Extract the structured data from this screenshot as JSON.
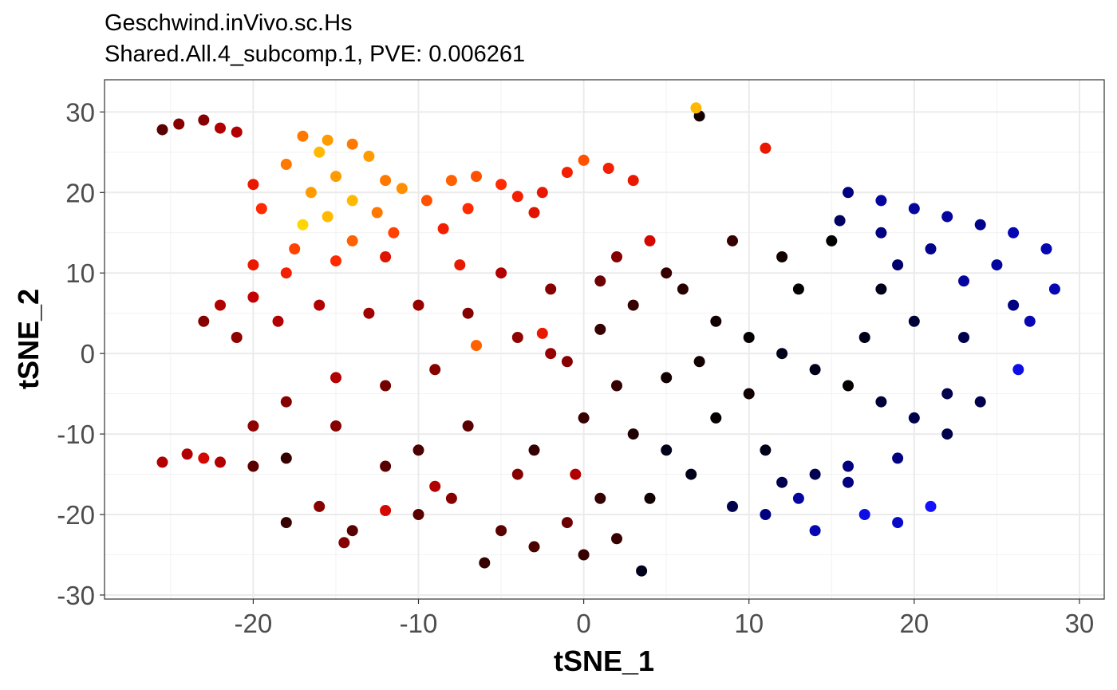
{
  "chart_data": {
    "type": "scatter",
    "title": "Geschwind.inVivo.sc.Hs",
    "subtitle": "Shared.All.4_subcomp.1, PVE: 0.006261",
    "xlabel": "tSNE_1",
    "ylabel": "tSNE_2",
    "xlim": [
      -29,
      31.5
    ],
    "ylim": [
      -30.5,
      34
    ],
    "x_ticks": [
      {
        "value": -20,
        "label": "-20"
      },
      {
        "value": -10,
        "label": "-10"
      },
      {
        "value": 0,
        "label": "0"
      },
      {
        "value": 10,
        "label": "10"
      },
      {
        "value": 20,
        "label": "20"
      },
      {
        "value": 30,
        "label": "30"
      }
    ],
    "y_ticks": [
      {
        "value": -30,
        "label": "-30"
      },
      {
        "value": -20,
        "label": "-20"
      },
      {
        "value": -10,
        "label": "-10"
      },
      {
        "value": 0,
        "label": "0"
      },
      {
        "value": 10,
        "label": "10"
      },
      {
        "value": 20,
        "label": "20"
      },
      {
        "value": 30,
        "label": "30"
      }
    ],
    "grid": true,
    "legend": "none",
    "color_scale": [
      "#7b2cf0",
      "#1010ff",
      "#000080",
      "#000000",
      "#5a0000",
      "#c80000",
      "#ff2a00",
      "#ff8c00",
      "#ffd700"
    ],
    "point_size": 7,
    "points": [
      [
        -24.5,
        28.5,
        0.55
      ],
      [
        -23,
        29,
        0.55
      ],
      [
        -22,
        28,
        0.6
      ],
      [
        -21,
        27.5,
        0.6
      ],
      [
        -25.5,
        27.8,
        0.5
      ],
      [
        -17,
        27,
        0.85
      ],
      [
        -15.5,
        26.5,
        0.9
      ],
      [
        -14,
        26,
        0.85
      ],
      [
        -16,
        25,
        0.95
      ],
      [
        -13,
        24.5,
        0.9
      ],
      [
        -18,
        23.5,
        0.85
      ],
      [
        -15,
        22,
        0.9
      ],
      [
        -12,
        21.5,
        0.85
      ],
      [
        -16.5,
        20,
        0.9
      ],
      [
        -14,
        19,
        0.95
      ],
      [
        -17,
        16,
        1.0
      ],
      [
        -15.5,
        17,
        0.95
      ],
      [
        -12.5,
        17.5,
        0.85
      ],
      [
        -19.5,
        18,
        0.75
      ],
      [
        -20,
        21,
        0.7
      ],
      [
        -11,
        20.5,
        0.88
      ],
      [
        -9.5,
        19,
        0.8
      ],
      [
        -8,
        21.5,
        0.82
      ],
      [
        -6.5,
        22,
        0.8
      ],
      [
        -5,
        21,
        0.75
      ],
      [
        -7,
        18,
        0.75
      ],
      [
        -4,
        19.5,
        0.72
      ],
      [
        -2.5,
        20,
        0.7
      ],
      [
        -1,
        22.5,
        0.72
      ],
      [
        0,
        24,
        0.8
      ],
      [
        1.5,
        23,
        0.72
      ],
      [
        3,
        21.5,
        0.7
      ],
      [
        -3,
        17.5,
        0.68
      ],
      [
        -8.5,
        15.5,
        0.72
      ],
      [
        -11.5,
        15,
        0.78
      ],
      [
        -14,
        14,
        0.82
      ],
      [
        -17.5,
        13,
        0.78
      ],
      [
        -20,
        11,
        0.7
      ],
      [
        -18,
        10,
        0.72
      ],
      [
        -15,
        11.5,
        0.75
      ],
      [
        -12,
        12,
        0.68
      ],
      [
        -22,
        6,
        0.6
      ],
      [
        -20,
        7,
        0.62
      ],
      [
        -23,
        4,
        0.55
      ],
      [
        -21,
        2,
        0.56
      ],
      [
        -18.5,
        4,
        0.6
      ],
      [
        -16,
        6,
        0.6
      ],
      [
        -13,
        5,
        0.58
      ],
      [
        -10,
        6,
        0.57
      ],
      [
        -7,
        5,
        0.55
      ],
      [
        -4,
        2,
        0.56
      ],
      [
        -2,
        0,
        0.57
      ],
      [
        -6.5,
        1,
        0.82
      ],
      [
        -2.5,
        2.5,
        0.7
      ],
      [
        -1,
        -1,
        0.55
      ],
      [
        -9,
        -2,
        0.55
      ],
      [
        -12,
        -4,
        0.53
      ],
      [
        -15,
        -3,
        0.6
      ],
      [
        -18,
        -6,
        0.55
      ],
      [
        -20,
        -9,
        0.56
      ],
      [
        -24,
        -12.5,
        0.6
      ],
      [
        -25.5,
        -13.5,
        0.6
      ],
      [
        -23,
        -13,
        0.65
      ],
      [
        -22,
        -13.5,
        0.6
      ],
      [
        -20,
        -14,
        0.5
      ],
      [
        -18,
        -21,
        0.45
      ],
      [
        -16,
        -19,
        0.55
      ],
      [
        -14,
        -22,
        0.5
      ],
      [
        -12,
        -19.5,
        0.65
      ],
      [
        -10,
        -20,
        0.5
      ],
      [
        -8,
        -18,
        0.55
      ],
      [
        -5,
        -22,
        0.5
      ],
      [
        -3,
        -24,
        0.48
      ],
      [
        -1,
        -21,
        0.52
      ],
      [
        0,
        -25,
        0.45
      ],
      [
        2,
        -23,
        0.45
      ],
      [
        3.5,
        -27,
        0.35
      ],
      [
        -6,
        -26,
        0.45
      ],
      [
        -9,
        -16.5,
        0.6
      ],
      [
        -14.5,
        -23.5,
        0.55
      ],
      [
        1,
        3,
        0.45
      ],
      [
        3,
        6,
        0.45
      ],
      [
        5,
        10,
        0.45
      ],
      [
        2,
        12,
        0.55
      ],
      [
        6,
        8,
        0.43
      ],
      [
        8,
        4,
        0.4
      ],
      [
        10,
        2,
        0.38
      ],
      [
        12,
        0,
        0.35
      ],
      [
        14,
        -2,
        0.35
      ],
      [
        16,
        -4,
        0.38
      ],
      [
        18,
        -6,
        0.32
      ],
      [
        20,
        -8,
        0.3
      ],
      [
        22,
        -5,
        0.3
      ],
      [
        5,
        -3,
        0.4
      ],
      [
        8,
        -8,
        0.38
      ],
      [
        11,
        -12,
        0.35
      ],
      [
        14,
        -15,
        0.3
      ],
      [
        3,
        -10,
        0.42
      ],
      [
        0,
        -8,
        0.45
      ],
      [
        -3,
        -12,
        0.45
      ],
      [
        9,
        14,
        0.45
      ],
      [
        12,
        12,
        0.4
      ],
      [
        15,
        14,
        0.38
      ],
      [
        18,
        8,
        0.35
      ],
      [
        20,
        4,
        0.32
      ],
      [
        23,
        2,
        0.3
      ],
      [
        17,
        2,
        0.35
      ],
      [
        13,
        8,
        0.38
      ],
      [
        16,
        20,
        0.25
      ],
      [
        18,
        19,
        0.22
      ],
      [
        20,
        18,
        0.22
      ],
      [
        22,
        17,
        0.22
      ],
      [
        24,
        16,
        0.24
      ],
      [
        26,
        15,
        0.2
      ],
      [
        28,
        13,
        0.2
      ],
      [
        28.5,
        8,
        0.2
      ],
      [
        25,
        11,
        0.22
      ],
      [
        21,
        13,
        0.24
      ],
      [
        18,
        15,
        0.25
      ],
      [
        15.5,
        16.5,
        0.28
      ],
      [
        19,
        11,
        0.27
      ],
      [
        23,
        9,
        0.22
      ],
      [
        26,
        6,
        0.25
      ],
      [
        27,
        4,
        0.2
      ],
      [
        26.3,
        -2,
        0.15
      ],
      [
        24,
        -6,
        0.3
      ],
      [
        22,
        -10,
        0.3
      ],
      [
        19,
        -13,
        0.25
      ],
      [
        16,
        -16,
        0.25
      ],
      [
        13,
        -18,
        0.22
      ],
      [
        11,
        -20,
        0.25
      ],
      [
        14,
        -22,
        0.2
      ],
      [
        17,
        -20,
        0.15
      ],
      [
        19,
        -21,
        0.18
      ],
      [
        21,
        -19,
        0.12
      ],
      [
        16,
        -14,
        0.25
      ],
      [
        12,
        -16,
        0.3
      ],
      [
        9,
        -19,
        0.3
      ],
      [
        6.5,
        -15,
        0.35
      ],
      [
        4,
        -18,
        0.4
      ],
      [
        6.8,
        30.5,
        0.95
      ],
      [
        7,
        29.5,
        0.4
      ],
      [
        11,
        25.5,
        0.7
      ],
      [
        -12,
        -14,
        0.5
      ],
      [
        -4,
        -15,
        0.55
      ],
      [
        -0.5,
        -15,
        0.6
      ],
      [
        1,
        -18,
        0.45
      ],
      [
        5,
        -12,
        0.35
      ],
      [
        -7,
        -9,
        0.5
      ],
      [
        -15,
        -9,
        0.55
      ],
      [
        -5,
        10,
        0.6
      ],
      [
        -2,
        8,
        0.55
      ],
      [
        1,
        9,
        0.52
      ],
      [
        4,
        14,
        0.65
      ],
      [
        -7.5,
        11,
        0.7
      ],
      [
        10,
        -5,
        0.4
      ],
      [
        7,
        -1,
        0.4
      ],
      [
        2,
        -4,
        0.45
      ],
      [
        -10,
        -12,
        0.48
      ],
      [
        -18,
        -13,
        0.45
      ]
    ]
  }
}
